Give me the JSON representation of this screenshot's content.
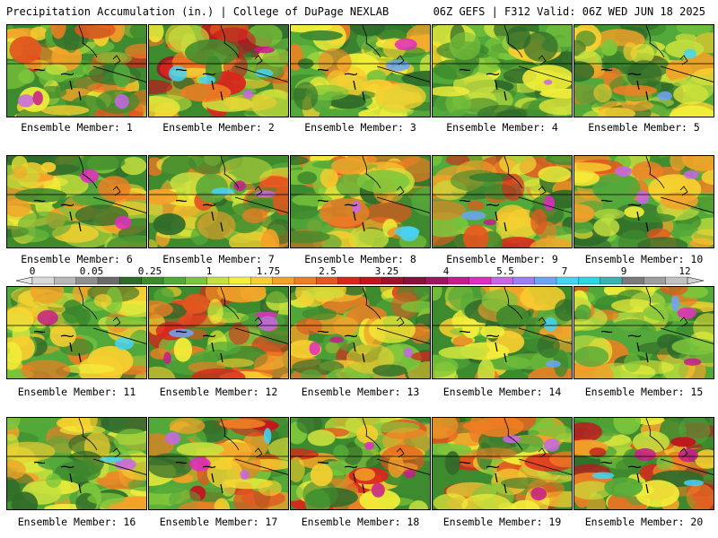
{
  "header": {
    "left": "Precipitation Accumulation (in.) | College of DuPage NEXLAB",
    "right": "06Z GEFS | F312 Valid: 06Z WED JUN 18 2025"
  },
  "colorbar": {
    "labels": [
      "0",
      "0.05",
      "0.25",
      "1",
      "1.75",
      "2.5",
      "3.25",
      "4",
      "5.5",
      "7",
      "9",
      "12"
    ],
    "colors": [
      "#d9d9d9",
      "#b8b8b8",
      "#8f8f8f",
      "#6b6b6b",
      "#2f6b2a",
      "#3e8a2e",
      "#53a83a",
      "#7cc63c",
      "#c6e03e",
      "#f3ef3a",
      "#f7cf30",
      "#f2a229",
      "#ee7e24",
      "#e3561f",
      "#d9261c",
      "#c4121e",
      "#a1102a",
      "#8a0f3a",
      "#a0165e",
      "#c51d8a",
      "#e02cc0",
      "#c866e6",
      "#9b7ef2",
      "#6ea4f5",
      "#46d4f5",
      "#2ad9e0",
      "#38b3b3",
      "#7a7a7a",
      "#9e9e9e",
      "#c2c2c2"
    ]
  },
  "members": [
    {
      "label": "Ensemble Member: 1",
      "intensity": 0.55
    },
    {
      "label": "Ensemble Member: 2",
      "intensity": 0.85
    },
    {
      "label": "Ensemble Member: 3",
      "intensity": 0.35
    },
    {
      "label": "Ensemble Member: 4",
      "intensity": 0.15
    },
    {
      "label": "Ensemble Member: 5",
      "intensity": 0.4
    },
    {
      "label": "Ensemble Member: 6",
      "intensity": 0.35
    },
    {
      "label": "Ensemble Member: 7",
      "intensity": 0.45
    },
    {
      "label": "Ensemble Member: 8",
      "intensity": 0.45
    },
    {
      "label": "Ensemble Member: 9",
      "intensity": 0.55
    },
    {
      "label": "Ensemble Member: 10",
      "intensity": 0.5
    },
    {
      "label": "Ensemble Member: 11",
      "intensity": 0.4
    },
    {
      "label": "Ensemble Member: 12",
      "intensity": 0.6
    },
    {
      "label": "Ensemble Member: 13",
      "intensity": 0.55
    },
    {
      "label": "Ensemble Member: 14",
      "intensity": 0.4
    },
    {
      "label": "Ensemble Member: 15",
      "intensity": 0.45
    },
    {
      "label": "Ensemble Member: 16",
      "intensity": 0.35
    },
    {
      "label": "Ensemble Member: 17",
      "intensity": 0.65
    },
    {
      "label": "Ensemble Member: 18",
      "intensity": 0.55
    },
    {
      "label": "Ensemble Member: 19",
      "intensity": 0.55
    },
    {
      "label": "Ensemble Member: 20",
      "intensity": 0.7
    }
  ]
}
